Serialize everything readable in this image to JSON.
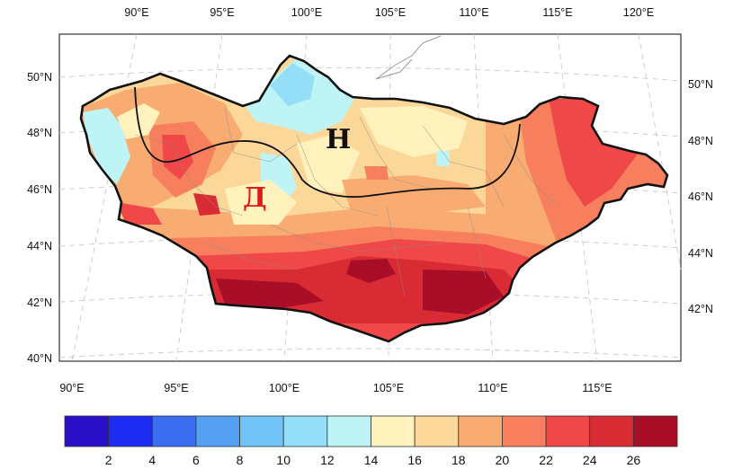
{
  "map": {
    "top_lon_labels": [
      "90°E",
      "95°E",
      "100°E",
      "105°E",
      "110°E",
      "115°E",
      "120°E"
    ],
    "bottom_lon_labels": [
      "90°E",
      "95°E",
      "100°E",
      "105°E",
      "110°E",
      "115°E"
    ],
    "left_lat_labels": [
      "50°N",
      "48°N",
      "46°N",
      "44°N",
      "42°N",
      "40°N"
    ],
    "right_lat_labels": [
      "50°N",
      "48°N",
      "46°N",
      "44°N",
      "42°N"
    ],
    "zone_north_label": "Н",
    "zone_south_label": "Д"
  },
  "colorbar": {
    "tick_labels": [
      "2",
      "4",
      "6",
      "8",
      "10",
      "12",
      "14",
      "16",
      "18",
      "20",
      "22",
      "24",
      "26"
    ],
    "colors": [
      "#2a0fc8",
      "#1f2cf2",
      "#3c6ff0",
      "#55a0f2",
      "#6fc4f5",
      "#94def7",
      "#bff4f7",
      "#fff2bc",
      "#fbd79a",
      "#f9ac72",
      "#f77f5e",
      "#f04848",
      "#d92b34",
      "#a80e27"
    ]
  }
}
